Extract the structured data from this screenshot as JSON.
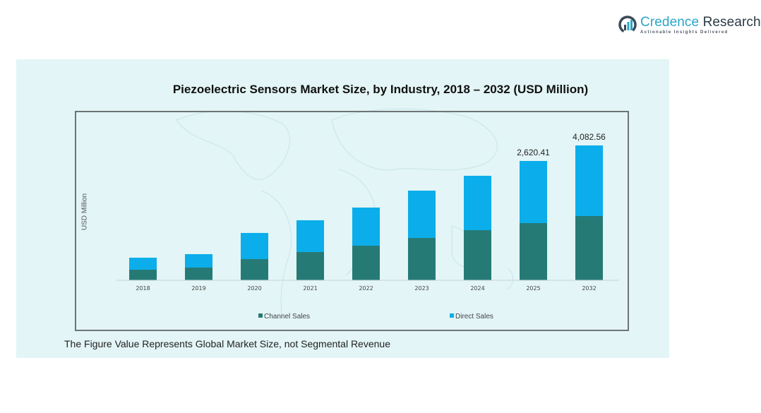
{
  "brand": {
    "name_part1": "Credence",
    "name_part2": " Research",
    "tagline": "Actionable Insights Delivered",
    "logo_icon": "bar-chart-circle-icon"
  },
  "footnote": "The Figure Value Represents Global Market Size, not Segmental Revenue",
  "colors": {
    "channel_sales": "#267a76",
    "direct_sales": "#0baeea",
    "panel_bg": "#e3f5f6"
  },
  "chart_data": {
    "type": "bar",
    "stacked": true,
    "title": "Piezoelectric  Sensors Market Size, by Industry, 2018 – 2032 (USD Million)",
    "xlabel": "",
    "ylabel": "USD Million",
    "categories": [
      "2018",
      "2019",
      "2020",
      "2021",
      "2022",
      "2023",
      "2024",
      "2025",
      "2032"
    ],
    "series": [
      {
        "name": "Channel Sales",
        "color": "#267a76",
        "values": [
          233,
          279,
          465,
          620,
          760,
          930,
          1101,
          1256,
          1945
        ]
      },
      {
        "name": "Direct Sales",
        "color": "#0baeea",
        "values": [
          263,
          295,
          574,
          698,
          837,
          1039,
          1194,
          1364.41,
          2137.56
        ]
      }
    ],
    "totals": [
      496,
      574,
      1039,
      1318,
      1597,
      1969,
      2295,
      2620.41,
      4082.56
    ],
    "data_labels": [
      {
        "category": "2025",
        "text": "2,620.41"
      },
      {
        "category": "2032",
        "text": "4,082.56"
      }
    ],
    "legend": {
      "position": "bottom",
      "entries": [
        "Channel Sales",
        "Direct Sales"
      ]
    },
    "grid": false,
    "y_axis_visible": false
  }
}
